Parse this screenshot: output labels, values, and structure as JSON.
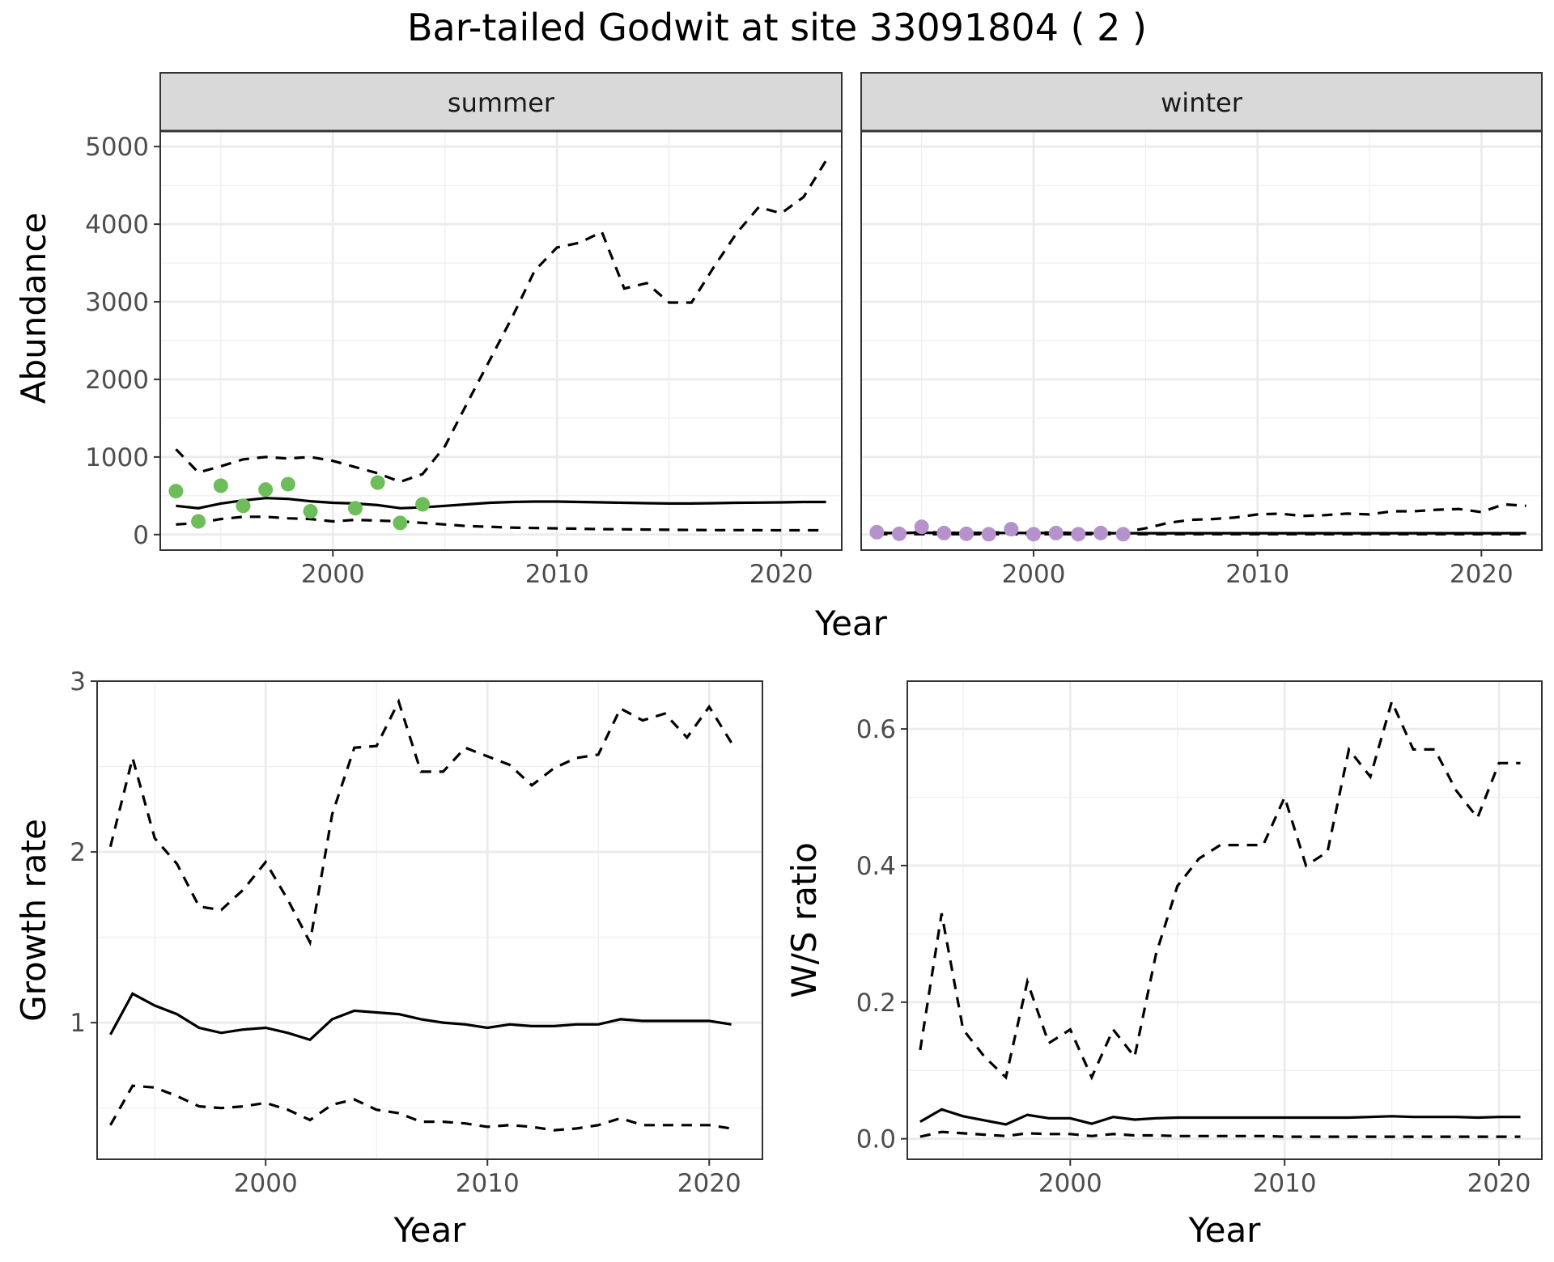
{
  "title": "Bar-tailed Godwit at site 33091804 ( 2 )",
  "colors": {
    "summer_points": "#6dbd5b",
    "winter_points": "#b692cd",
    "strip_fill": "#d9d9d9"
  },
  "chart_data": [
    {
      "id": "abundance",
      "type": "line",
      "ylabel": "Abundance",
      "xlabel": "Year",
      "xlim": [
        1992.3,
        2022.7
      ],
      "ylim": [
        -200,
        5200
      ],
      "xticks": [
        2000,
        2010,
        2020
      ],
      "yticks": [
        0,
        1000,
        2000,
        3000,
        4000,
        5000
      ],
      "grid": true,
      "facets": [
        {
          "label": "summer",
          "x": [
            1993,
            1994,
            1995,
            1996,
            1997,
            1998,
            1999,
            2000,
            2001,
            2002,
            2003,
            2004,
            2005,
            2006,
            2007,
            2008,
            2009,
            2010,
            2011,
            2012,
            2013,
            2014,
            2015,
            2016,
            2017,
            2018,
            2019,
            2020,
            2021,
            2022
          ],
          "mean": [
            370,
            340,
            400,
            440,
            470,
            460,
            430,
            410,
            400,
            380,
            340,
            350,
            370,
            390,
            410,
            420,
            425,
            425,
            420,
            415,
            410,
            405,
            400,
            400,
            405,
            410,
            412,
            415,
            420,
            420
          ],
          "upper": [
            1100,
            800,
            880,
            970,
            1000,
            980,
            1000,
            950,
            870,
            790,
            680,
            780,
            1140,
            1700,
            2250,
            2800,
            3400,
            3700,
            3760,
            3900,
            3170,
            3240,
            2990,
            2990,
            3450,
            3880,
            4220,
            4140,
            4350,
            4820
          ],
          "lower": [
            130,
            150,
            200,
            230,
            230,
            210,
            200,
            170,
            190,
            180,
            170,
            150,
            130,
            110,
            100,
            90,
            85,
            80,
            75,
            70,
            68,
            65,
            62,
            60,
            58,
            57,
            56,
            55,
            55,
            55
          ],
          "points": {
            "x": [
              1993,
              1994,
              1995,
              1996,
              1997,
              1998,
              1999,
              2001,
              2002,
              2003,
              2004
            ],
            "y": [
              560,
              170,
              630,
              370,
              580,
              650,
              300,
              340,
              670,
              150,
              390
            ]
          }
        },
        {
          "label": "winter",
          "x": [
            1993,
            1994,
            1995,
            1996,
            1997,
            1998,
            1999,
            2000,
            2001,
            2002,
            2003,
            2004,
            2005,
            2006,
            2007,
            2008,
            2009,
            2010,
            2011,
            2012,
            2013,
            2014,
            2015,
            2016,
            2017,
            2018,
            2019,
            2020,
            2021,
            2022
          ],
          "mean": [
            20,
            20,
            25,
            20,
            18,
            20,
            22,
            20,
            20,
            18,
            18,
            18,
            18,
            18,
            18,
            18,
            18,
            18,
            18,
            18,
            18,
            18,
            18,
            18,
            18,
            18,
            18,
            18,
            18,
            18
          ],
          "upper": [
            20,
            20,
            30,
            25,
            20,
            25,
            30,
            25,
            25,
            20,
            20,
            30,
            80,
            150,
            190,
            200,
            220,
            260,
            270,
            240,
            250,
            270,
            260,
            300,
            300,
            320,
            330,
            290,
            390,
            370
          ],
          "lower": [
            5,
            5,
            5,
            5,
            5,
            5,
            5,
            5,
            5,
            5,
            5,
            5,
            5,
            5,
            5,
            5,
            5,
            5,
            5,
            5,
            5,
            5,
            5,
            5,
            5,
            5,
            5,
            5,
            5,
            5
          ],
          "points": {
            "x": [
              1993,
              1994,
              1995,
              1996,
              1997,
              1998,
              1999,
              2000,
              2001,
              2002,
              2003,
              2004
            ],
            "y": [
              30,
              10,
              100,
              20,
              10,
              5,
              70,
              5,
              20,
              5,
              20,
              5
            ]
          }
        }
      ]
    },
    {
      "id": "growth",
      "type": "line",
      "ylabel": "Growth rate",
      "xlabel": "Year",
      "xlim": [
        1992.4,
        2022.4
      ],
      "ylim": [
        0.2,
        3.0
      ],
      "xticks": [
        2000,
        2010,
        2020
      ],
      "yticks": [
        1,
        2,
        3
      ],
      "grid": true,
      "x": [
        1993,
        1994,
        1995,
        1996,
        1997,
        1998,
        1999,
        2000,
        2001,
        2002,
        2003,
        2004,
        2005,
        2006,
        2007,
        2008,
        2009,
        2010,
        2011,
        2012,
        2013,
        2014,
        2015,
        2016,
        2017,
        2018,
        2019,
        2020,
        2021
      ],
      "mean": [
        0.93,
        1.17,
        1.1,
        1.05,
        0.97,
        0.94,
        0.96,
        0.97,
        0.94,
        0.9,
        1.02,
        1.07,
        1.06,
        1.05,
        1.02,
        1.0,
        0.99,
        0.97,
        0.99,
        0.98,
        0.98,
        0.99,
        0.99,
        1.02,
        1.01,
        1.01,
        1.01,
        1.01,
        0.99
      ],
      "upper": [
        2.03,
        2.55,
        2.08,
        1.93,
        1.68,
        1.66,
        1.78,
        1.94,
        1.72,
        1.47,
        2.22,
        2.61,
        2.62,
        2.88,
        2.47,
        2.47,
        2.61,
        2.56,
        2.51,
        2.39,
        2.49,
        2.55,
        2.57,
        2.84,
        2.77,
        2.81,
        2.67,
        2.85,
        2.64
      ],
      "lower": [
        0.4,
        0.63,
        0.62,
        0.57,
        0.51,
        0.5,
        0.51,
        0.53,
        0.49,
        0.43,
        0.52,
        0.55,
        0.49,
        0.47,
        0.42,
        0.42,
        0.41,
        0.39,
        0.4,
        0.39,
        0.37,
        0.38,
        0.4,
        0.44,
        0.4,
        0.4,
        0.4,
        0.4,
        0.38
      ]
    },
    {
      "id": "ratio",
      "type": "line",
      "ylabel": "W/S ratio",
      "xlabel": "Year",
      "xlim": [
        1992.4,
        2022.0
      ],
      "ylim": [
        -0.03,
        0.67
      ],
      "xticks": [
        2000,
        2010,
        2020
      ],
      "yticks": [
        0.0,
        0.2,
        0.4,
        0.6
      ],
      "ytick_labels": [
        "0.0",
        "0.2",
        "0.4",
        "0.6"
      ],
      "grid": true,
      "x": [
        1993,
        1994,
        1995,
        1996,
        1997,
        1998,
        1999,
        2000,
        2001,
        2002,
        2003,
        2004,
        2005,
        2006,
        2007,
        2008,
        2009,
        2010,
        2011,
        2012,
        2013,
        2014,
        2015,
        2016,
        2017,
        2018,
        2019,
        2020,
        2021
      ],
      "mean": [
        0.025,
        0.043,
        0.033,
        0.027,
        0.021,
        0.035,
        0.03,
        0.03,
        0.022,
        0.032,
        0.028,
        0.03,
        0.031,
        0.031,
        0.031,
        0.031,
        0.031,
        0.031,
        0.031,
        0.031,
        0.031,
        0.032,
        0.033,
        0.032,
        0.032,
        0.032,
        0.031,
        0.032,
        0.032
      ],
      "upper": [
        0.13,
        0.33,
        0.16,
        0.12,
        0.09,
        0.23,
        0.14,
        0.16,
        0.09,
        0.16,
        0.12,
        0.27,
        0.37,
        0.41,
        0.43,
        0.43,
        0.43,
        0.5,
        0.4,
        0.42,
        0.57,
        0.53,
        0.64,
        0.57,
        0.57,
        0.51,
        0.47,
        0.55,
        0.55
      ],
      "lower": [
        0.003,
        0.01,
        0.008,
        0.006,
        0.004,
        0.008,
        0.007,
        0.007,
        0.004,
        0.007,
        0.005,
        0.005,
        0.004,
        0.004,
        0.004,
        0.004,
        0.004,
        0.003,
        0.003,
        0.003,
        0.003,
        0.003,
        0.003,
        0.003,
        0.003,
        0.003,
        0.003,
        0.003,
        0.003
      ]
    }
  ]
}
